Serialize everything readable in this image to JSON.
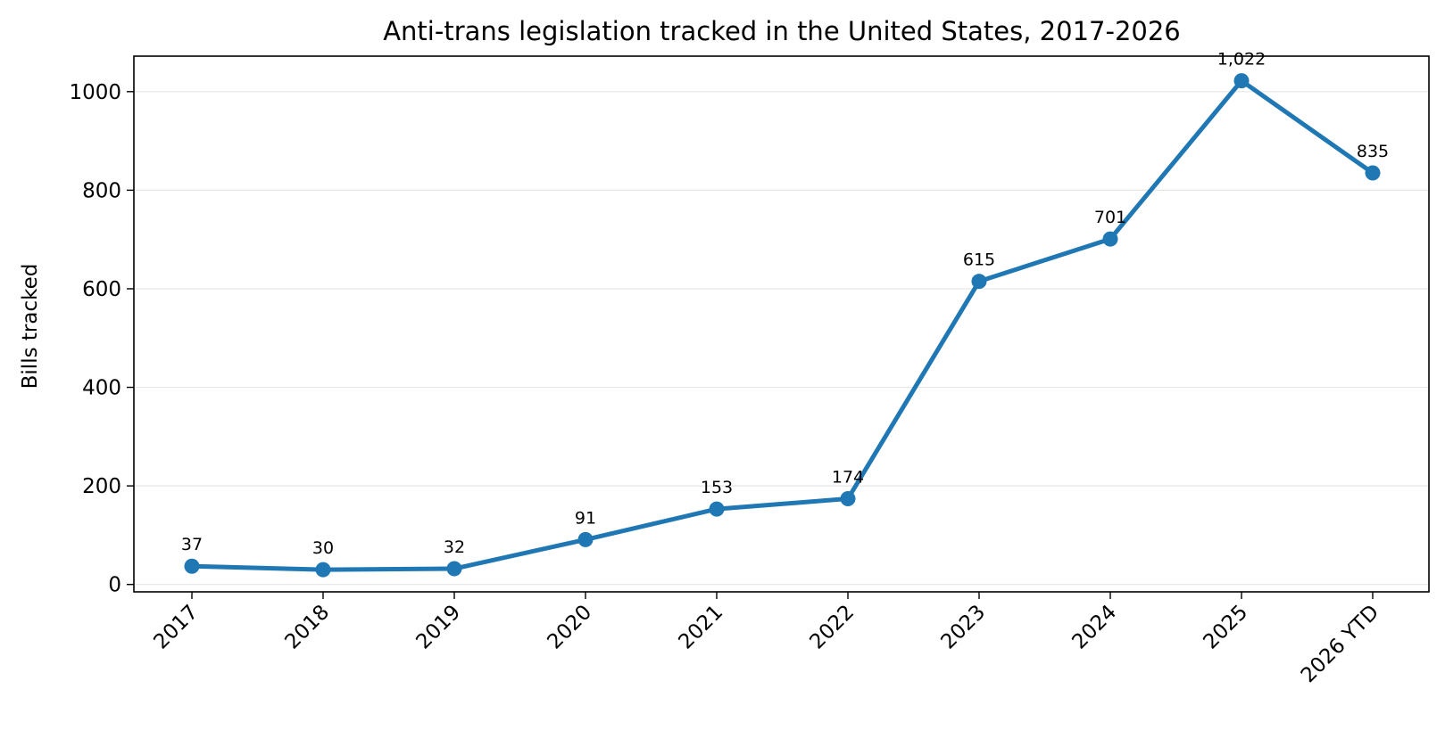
{
  "colors": {
    "series": "#1f77b4",
    "grid": "#e6e6e6",
    "axis": "#000000"
  },
  "chart_data": {
    "type": "line",
    "title": "Anti-trans legislation tracked in the United States, 2017-2026",
    "xlabel": "",
    "ylabel": "Bills tracked",
    "categories": [
      "2017",
      "2018",
      "2019",
      "2020",
      "2021",
      "2022",
      "2023",
      "2024",
      "2025",
      "2026 YTD"
    ],
    "series": [
      {
        "values": [
          37,
          30,
          32,
          91,
          153,
          174,
          615,
          701,
          1022,
          835
        ]
      }
    ],
    "data_labels": [
      "37",
      "30",
      "32",
      "91",
      "153",
      "174",
      "615",
      "701",
      "1,022",
      "835"
    ],
    "yticks": [
      0,
      200,
      400,
      600,
      800,
      1000
    ],
    "ylim": [
      -15,
      1072
    ],
    "grid": "horizontal",
    "legend": "none"
  }
}
